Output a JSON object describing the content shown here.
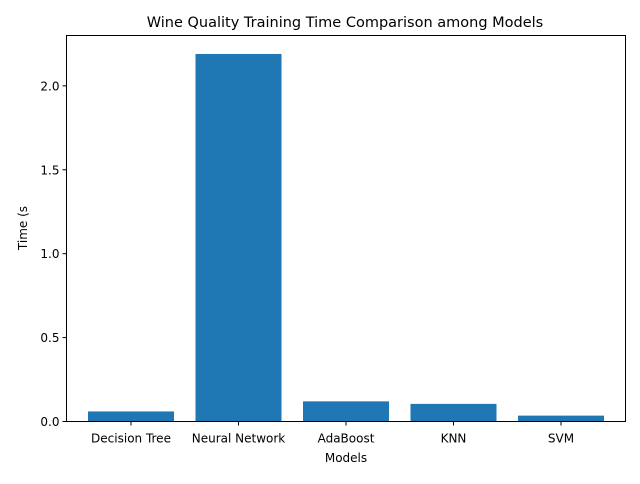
{
  "chart_data": {
    "type": "bar",
    "title": "Wine Quality Training Time Comparison among Models",
    "xlabel": "Models",
    "ylabel": "Time (s",
    "categories": [
      "Decision Tree",
      "Neural Network",
      "AdaBoost",
      "KNN",
      "SVM"
    ],
    "values": [
      0.06,
      2.19,
      0.12,
      0.105,
      0.035
    ],
    "ylim": [
      0,
      2.3
    ],
    "yticks": [
      0.0,
      0.5,
      1.0,
      1.5,
      2.0
    ],
    "ytick_labels": [
      "0.0",
      "0.5",
      "1.0",
      "1.5",
      "2.0"
    ],
    "bar_color": "#1f77b4",
    "grid": false,
    "legend": "none"
  }
}
